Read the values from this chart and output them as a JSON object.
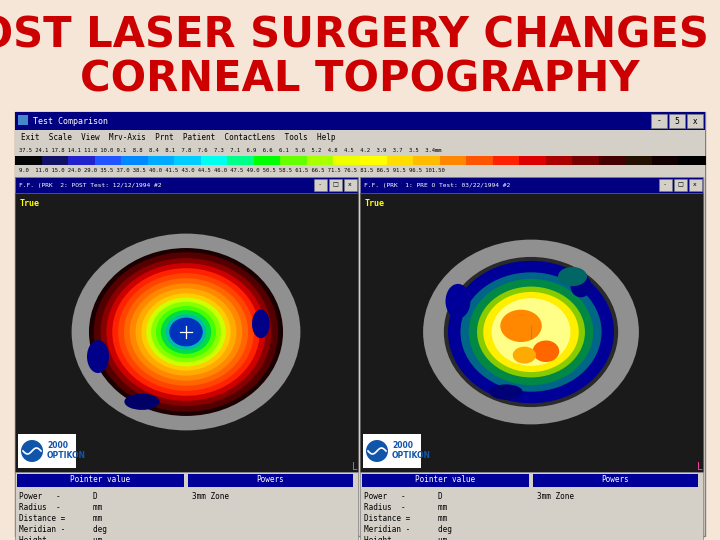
{
  "title_line1": "POST LASER SURGERY CHANGES IN",
  "title_line2": "CORNEAL TOPOGRAPHY",
  "title_color": "#cc0000",
  "background_color": "#f5e6d8",
  "title_fontsize": 30,
  "window_title_text": "Test Comparison",
  "left_panel_title": "F.F. (PRK  2: POST Test: 12/12/1994 #2",
  "right_panel_title": "F.F. (PRK  1: PRE O Test: 03/22/1994 #2",
  "scale_top": "37.5 24.1 17.8 14.1 11.8 10.0 9.1  8.8  8.4  8.1  7.8  7.6  7.3  7.1  6.9  6.6  6.1  5.6  5.2  4.8  4.5  4.2  3.9  3.7  3.5  3.4mm",
  "scale_bot": "9.0  11.0 15.0 24.0 29.0 35.5 37.0 38.5 40.0 41.5 43.0 44.5 46.0 47.5 49.0 50.5 58.5 61.5 66.5 71.5 76.5 81.5 86.5 91.5 96.5 101.50",
  "colors_list": [
    "#050505",
    "#111166",
    "#2222cc",
    "#2255ff",
    "#0088ff",
    "#00aaff",
    "#00ccff",
    "#00ffee",
    "#00ff88",
    "#00ff00",
    "#66ff00",
    "#aaff00",
    "#eeff00",
    "#ffff00",
    "#ffdd00",
    "#ffbb00",
    "#ff8800",
    "#ff5500",
    "#ff2200",
    "#dd0000",
    "#aa0000",
    "#770000",
    "#440000",
    "#221100",
    "#110000",
    "#000000"
  ],
  "fig_width": 7.2,
  "fig_height": 5.4
}
